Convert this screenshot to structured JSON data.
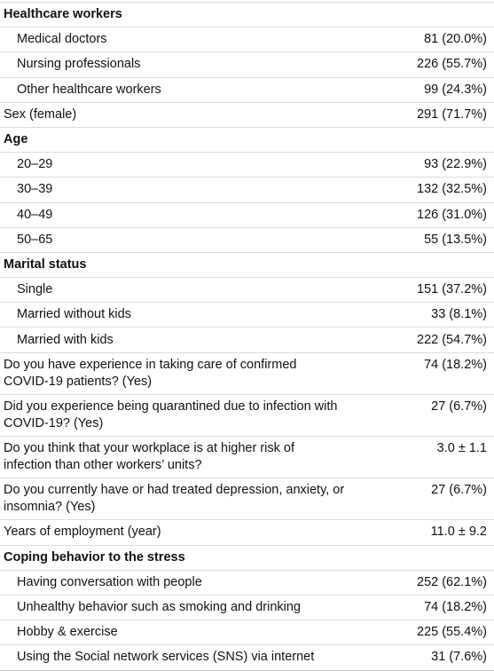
{
  "table": {
    "rows": [
      {
        "heading": "Healthcare workers",
        "items": [
          {
            "label": "Medical doctors",
            "value": "81 (20.0%)"
          },
          {
            "label": "Nursing professionals",
            "value": "226 (55.7%)"
          },
          {
            "label": "Other healthcare workers",
            "value": "99 (24.3%)"
          }
        ]
      },
      {
        "label": "Sex (female)",
        "value": "291 (71.7%)"
      },
      {
        "heading": "Age",
        "items": [
          {
            "label": "20–29",
            "value": "93 (22.9%)"
          },
          {
            "label": "30–39",
            "value": "132 (32.5%)"
          },
          {
            "label": "40–49",
            "value": "126 (31.0%)"
          },
          {
            "label": "50–65",
            "value": "55 (13.5%)"
          }
        ]
      },
      {
        "heading": "Marital status",
        "items": [
          {
            "label": "Single",
            "value": "151 (37.2%)"
          },
          {
            "label": "Married without kids",
            "value": "33 (8.1%)"
          },
          {
            "label": "Married with kids",
            "value": "222 (54.7%)"
          }
        ]
      },
      {
        "label": "Do you have experience in taking care of confirmed COVID-19 patients? (Yes)",
        "value": "74 (18.2%)"
      },
      {
        "label": "Did you experience being quarantined due to infection with COVID-19? (Yes)",
        "value": "27 (6.7%)"
      },
      {
        "label": "Do you think that your workplace is at higher risk of infection than other workers’ units?",
        "value": "3.0 ± 1.1"
      },
      {
        "label": "Do you currently have or had treated depression, anxiety, or insomnia? (Yes)",
        "value": "27 (6.7%)"
      },
      {
        "label": "Years of employment (year)",
        "value": "11.0 ± 9.2"
      },
      {
        "heading": "Coping behavior to the stress",
        "items": [
          {
            "label": "Having conversation with people",
            "value": "252 (62.1%)"
          },
          {
            "label": "Unhealthy behavior such as smoking and drinking",
            "value": "74 (18.2%)"
          },
          {
            "label": "Hobby & exercise",
            "value": "225 (55.4%)"
          },
          {
            "label": "Using the Social network services (SNS) via internet",
            "value": "31 (7.6%)"
          }
        ]
      }
    ]
  }
}
